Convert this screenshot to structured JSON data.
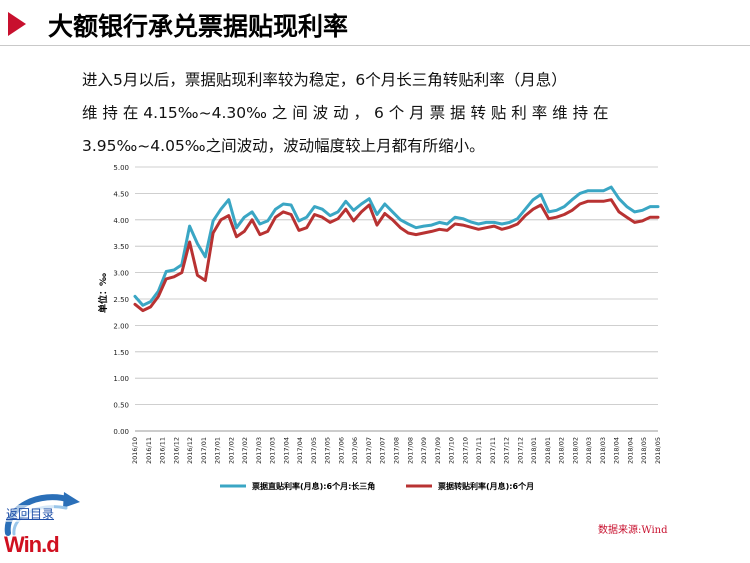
{
  "page": {
    "title": "大额银行承兑票据贴现利率",
    "paragraph_lines": [
      "进入5月以后，票据贴现利率较为稳定，6个月长三角转贴利率（月息）",
      "维 持 在 4.15‰~4.30‰ 之 间 波 动 ， 6 个 月 票 据 转 贴 利 率 维 持 在",
      "3.95‰~4.05‰之间波动，波动幅度较上月都有所缩小。"
    ],
    "source": "数据来源:Wind",
    "return_link": "返回目录",
    "logo": "Win.d"
  },
  "colors": {
    "accent": "#c8102e",
    "series1": "#3aa6c4",
    "series2": "#b83232",
    "grid": "#bfbfbf"
  },
  "chart_data": {
    "type": "line",
    "ylabel": "单位：‰",
    "ylim": [
      0,
      5
    ],
    "yticks": [
      "0.00",
      "0.50",
      "1.00",
      "1.50",
      "2.00",
      "2.50",
      "3.00",
      "3.50",
      "4.00",
      "4.50",
      "5.00"
    ],
    "xticks": [
      "2016/10",
      "2016/11",
      "2016/11",
      "2016/12",
      "2016/12",
      "2017/01",
      "2017/01",
      "2017/02",
      "2017/02",
      "2017/03",
      "2017/03",
      "2017/04",
      "2017/04",
      "2017/05",
      "2017/05",
      "2017/06",
      "2017/06",
      "2017/07",
      "2017/07",
      "2017/08",
      "2017/08",
      "2017/09",
      "2017/09",
      "2017/10",
      "2017/10",
      "2017/11",
      "2017/11",
      "2017/12",
      "2017/12",
      "2018/01",
      "2018/01",
      "2018/02",
      "2018/02",
      "2018/03",
      "2018/03",
      "2018/04",
      "2018/04",
      "2018/05",
      "2018/05"
    ],
    "legend_position": "bottom",
    "grid": true,
    "series": [
      {
        "name": "票据直贴利率(月息):6个月:长三角",
        "color": "#3aa6c4",
        "values": [
          2.55,
          2.38,
          2.45,
          2.65,
          3.02,
          3.05,
          3.15,
          3.88,
          3.55,
          3.3,
          3.98,
          4.2,
          4.38,
          3.85,
          4.05,
          4.15,
          3.92,
          3.98,
          4.2,
          4.3,
          4.28,
          3.98,
          4.05,
          4.25,
          4.2,
          4.08,
          4.15,
          4.35,
          4.18,
          4.3,
          4.4,
          4.1,
          4.3,
          4.15,
          4.0,
          3.92,
          3.85,
          3.88,
          3.9,
          3.95,
          3.92,
          4.05,
          4.02,
          3.96,
          3.92,
          3.95,
          3.95,
          3.92,
          3.95,
          4.02,
          4.2,
          4.38,
          4.48,
          4.15,
          4.18,
          4.25,
          4.38,
          4.5,
          4.55,
          4.55,
          4.55,
          4.62,
          4.4,
          4.25,
          4.15,
          4.18,
          4.25,
          4.25
        ],
        "label_fraction": null
      },
      {
        "name": "票据转贴利率(月息):6个月",
        "color": "#b83232",
        "values": [
          2.4,
          2.28,
          2.35,
          2.55,
          2.88,
          2.92,
          3.0,
          3.58,
          2.95,
          2.85,
          3.75,
          4.0,
          4.08,
          3.68,
          3.78,
          4.0,
          3.72,
          3.78,
          4.05,
          4.15,
          4.1,
          3.8,
          3.85,
          4.1,
          4.05,
          3.95,
          4.02,
          4.2,
          3.98,
          4.15,
          4.28,
          3.9,
          4.12,
          4.0,
          3.85,
          3.75,
          3.72,
          3.75,
          3.78,
          3.82,
          3.8,
          3.92,
          3.9,
          3.86,
          3.82,
          3.85,
          3.88,
          3.82,
          3.86,
          3.92,
          4.08,
          4.2,
          4.28,
          4.02,
          4.05,
          4.1,
          4.18,
          4.3,
          4.35,
          4.35,
          4.35,
          4.38,
          4.15,
          4.05,
          3.95,
          3.98,
          4.05,
          4.05
        ],
        "label_fraction": null
      }
    ]
  }
}
